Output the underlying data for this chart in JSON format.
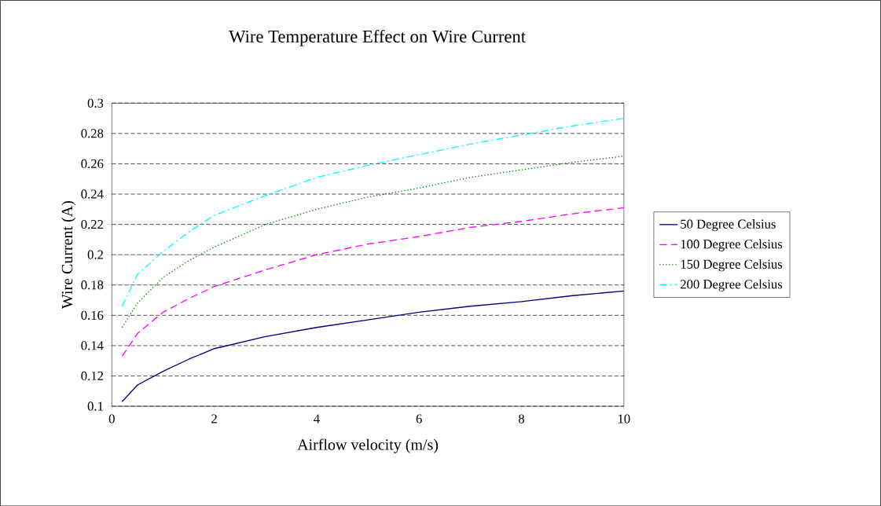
{
  "chart_data": {
    "type": "line",
    "title": "Wire Temperature Effect on Wire Current",
    "xlabel": "Airflow velocity (m/s)",
    "ylabel": "Wire Current (A)",
    "x": [
      0.2,
      0.5,
      1,
      1.5,
      2,
      3,
      4,
      5,
      6,
      7,
      8,
      9,
      10
    ],
    "series": [
      {
        "name": "50 Degree Celsius",
        "color": "#000080",
        "line_style": "solid",
        "values": [
          0.103,
          0.114,
          0.123,
          0.131,
          0.138,
          0.146,
          0.152,
          0.157,
          0.162,
          0.166,
          0.169,
          0.173,
          0.176
        ]
      },
      {
        "name": "100 Degree Celsius",
        "color": "#ff00ff",
        "line_style": "dashed",
        "values": [
          0.133,
          0.148,
          0.162,
          0.171,
          0.179,
          0.19,
          0.2,
          0.207,
          0.212,
          0.218,
          0.222,
          0.227,
          0.231
        ]
      },
      {
        "name": "150 Degree Celsius",
        "color": "#008000",
        "line_style": "dotted",
        "values": [
          0.152,
          0.168,
          0.185,
          0.196,
          0.205,
          0.22,
          0.23,
          0.238,
          0.244,
          0.251,
          0.256,
          0.261,
          0.265
        ]
      },
      {
        "name": "200 Degree Celsius",
        "color": "#00ffff",
        "line_style": "dashdot",
        "values": [
          0.166,
          0.187,
          0.202,
          0.215,
          0.226,
          0.239,
          0.251,
          0.259,
          0.266,
          0.273,
          0.279,
          0.285,
          0.29
        ]
      }
    ],
    "xlim": [
      0,
      10
    ],
    "ylim": [
      0.1,
      0.3
    ],
    "xticks": [
      0,
      2,
      4,
      6,
      8,
      10
    ],
    "yticks": [
      0.1,
      0.12,
      0.14,
      0.16,
      0.18,
      0.2,
      0.22,
      0.24,
      0.26,
      0.28,
      0.3
    ],
    "grid": "y",
    "legend": "right",
    "marker": "none"
  }
}
